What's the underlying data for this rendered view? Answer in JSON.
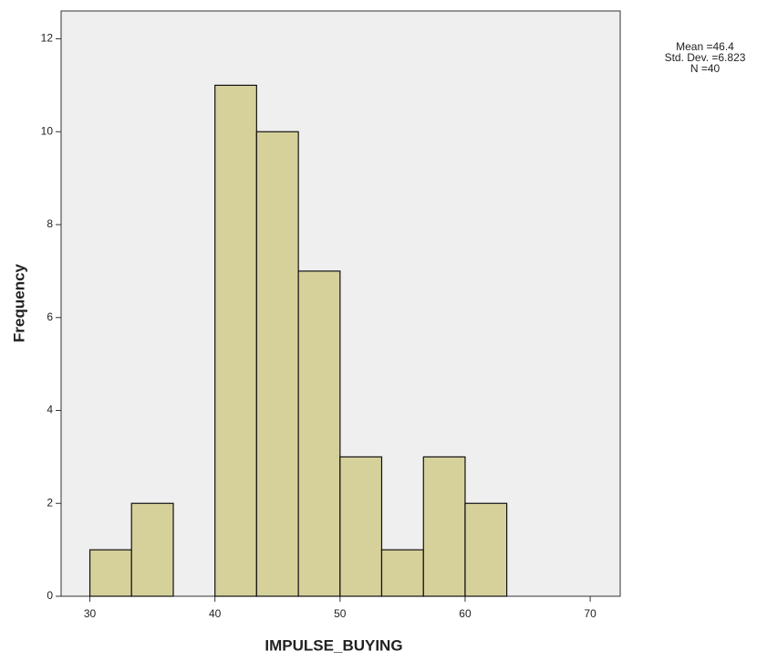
{
  "chart_data": {
    "type": "histogram",
    "x_label": "IMPULSE_BUYING",
    "y_label": "Frequency",
    "bins": [
      30,
      33.33,
      36.67,
      40,
      43.33,
      46.67,
      50,
      53.33,
      56.67,
      60,
      63.33
    ],
    "values": [
      1,
      2,
      0,
      11,
      10,
      7,
      3,
      1,
      3,
      2
    ],
    "color": "#d6d19b",
    "xlim": [
      27.7,
      72.4
    ],
    "ylim": [
      0,
      12.6
    ],
    "xticks": [
      30,
      40,
      50,
      60,
      70
    ],
    "yticks": [
      0,
      2,
      4,
      6,
      8,
      10,
      12
    ],
    "annotations": [
      "Mean =46.4",
      "Std. Dev. =6.823",
      "N =40"
    ]
  }
}
